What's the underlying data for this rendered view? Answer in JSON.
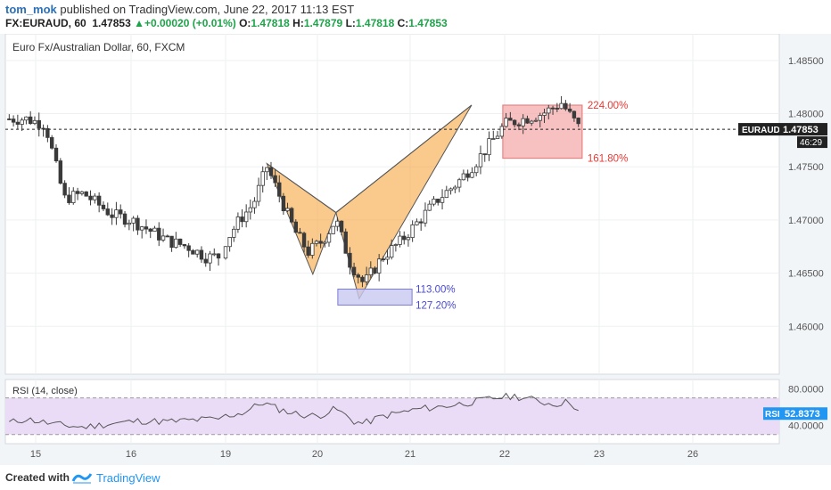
{
  "header": {
    "user": "tom_mok",
    "published_text": "published on TradingView.com, June 22, 2017 11:13 EST",
    "symbol_line": "FX:EURAUD, 60",
    "last": "1.47853",
    "change_arrow": "▲",
    "change": "+0.00020 (+0.01%)",
    "o_label": "O:",
    "o_value": "1.47818",
    "h_label": "H:",
    "h_value": "1.47879",
    "l_label": "L:",
    "l_value": "1.47818",
    "c_label": "C:",
    "c_value": "1.47853"
  },
  "footer": {
    "created_with": "Created with",
    "brand": "TradingView"
  },
  "colors": {
    "bull": "#ffffff",
    "bear": "#3a3a3a",
    "wick": "#3a3a3a",
    "pattern_fill": "#f7a540",
    "box_red": "#f4a6a6",
    "box_blue": "#c8c8f0",
    "red_text": "#e53935",
    "blue_text": "#4a4ad0",
    "rsi_fill": "#eadcf7",
    "rsi_line": "#555555"
  },
  "chart_data": {
    "type": "candlestick",
    "title": "Euro Fx/Australian Dollar, 60, FXCM",
    "ylim": [
      1.4555,
      1.4875
    ],
    "yticks": [
      "1.48500",
      "1.48000",
      "1.47500",
      "1.47000",
      "1.46500",
      "1.46000"
    ],
    "yticks_values": [
      1.485,
      1.48,
      1.475,
      1.47,
      1.465,
      1.46
    ],
    "xticks": [
      {
        "label": "15",
        "day": 15
      },
      {
        "label": "16",
        "day": 16
      },
      {
        "label": "19",
        "day": 19
      },
      {
        "label": "20",
        "day": 20
      },
      {
        "label": "21",
        "day": 21
      },
      {
        "label": "22",
        "day": 22
      },
      {
        "label": "23",
        "day": 23
      },
      {
        "label": "26",
        "day": 26
      }
    ],
    "last_price": {
      "symbol": "EURAUD",
      "value": "1.47853",
      "countdown": "46:29",
      "price": 1.47853
    },
    "harmonic_pattern": {
      "points": [
        {
          "day": 19.45,
          "price": 1.4753
        },
        {
          "day": 19.95,
          "price": 1.4649
        },
        {
          "day": 20.2,
          "price": 1.4707
        },
        {
          "day": 20.45,
          "price": 1.4626
        },
        {
          "day": 21.65,
          "price": 1.4808
        }
      ]
    },
    "fib_levels": [
      {
        "label": "224.00%",
        "price": 1.4808,
        "zone": "upper"
      },
      {
        "label": "161.80%",
        "price": 1.4758,
        "zone": "upper"
      },
      {
        "label": "113.00%",
        "price": 1.4635,
        "zone": "lower"
      },
      {
        "label": "127.20%",
        "price": 1.462,
        "zone": "lower"
      }
    ],
    "candles_daily_path": [
      [
        14.9,
        1.4795
      ],
      [
        15.1,
        1.479
      ],
      [
        15.3,
        1.472
      ],
      [
        15.5,
        1.4725
      ],
      [
        15.8,
        1.4705
      ],
      [
        16.0,
        1.47
      ],
      [
        16.2,
        1.469
      ],
      [
        16.4,
        1.468
      ],
      [
        16.6,
        1.4675
      ],
      [
        16.8,
        1.4665
      ],
      [
        19.0,
        1.468
      ],
      [
        19.15,
        1.47
      ],
      [
        19.3,
        1.4715
      ],
      [
        19.45,
        1.475
      ],
      [
        19.6,
        1.472
      ],
      [
        19.75,
        1.469
      ],
      [
        19.9,
        1.467
      ],
      [
        20.05,
        1.468
      ],
      [
        20.2,
        1.47
      ],
      [
        20.35,
        1.466
      ],
      [
        20.5,
        1.464
      ],
      [
        20.7,
        1.4665
      ],
      [
        20.9,
        1.468
      ],
      [
        21.1,
        1.47
      ],
      [
        21.3,
        1.472
      ],
      [
        21.5,
        1.4735
      ],
      [
        21.7,
        1.4755
      ],
      [
        21.9,
        1.4778
      ],
      [
        22.0,
        1.479
      ],
      [
        22.2,
        1.4795
      ],
      [
        22.4,
        1.48
      ],
      [
        22.6,
        1.481
      ],
      [
        22.8,
        1.4785
      ]
    ],
    "rsi": {
      "label": "RSI (14, close)",
      "ylim": [
        20,
        90
      ],
      "levels": [
        70,
        30
      ],
      "yticks": [
        "80.0000",
        "40.0000"
      ],
      "yticks_values": [
        80,
        40
      ],
      "current_label": "RSI",
      "current_value": "52.8373",
      "current": 52.8373,
      "values": [
        [
          14.6,
          40
        ],
        [
          14.9,
          47
        ],
        [
          15.2,
          41
        ],
        [
          15.5,
          38
        ],
        [
          15.8,
          42
        ],
        [
          16.1,
          45
        ],
        [
          16.4,
          44
        ],
        [
          16.7,
          46
        ],
        [
          16.9,
          47
        ],
        [
          19.0,
          50
        ],
        [
          19.2,
          54
        ],
        [
          19.4,
          65
        ],
        [
          19.6,
          57
        ],
        [
          19.8,
          52
        ],
        [
          20.0,
          50
        ],
        [
          20.2,
          58
        ],
        [
          20.4,
          44
        ],
        [
          20.5,
          42
        ],
        [
          20.7,
          50
        ],
        [
          20.9,
          54
        ],
        [
          21.1,
          58
        ],
        [
          21.3,
          60
        ],
        [
          21.5,
          63
        ],
        [
          21.7,
          66
        ],
        [
          21.9,
          70
        ],
        [
          22.1,
          72
        ],
        [
          22.3,
          68
        ],
        [
          22.5,
          63
        ],
        [
          22.7,
          66
        ],
        [
          22.8,
          52.8
        ]
      ]
    }
  }
}
